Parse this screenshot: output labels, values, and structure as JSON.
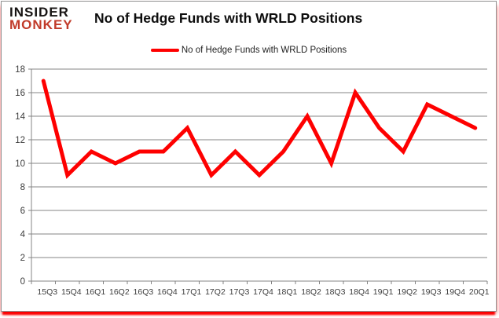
{
  "brand": {
    "line1": "INSIDER",
    "line2": "MONKEY",
    "accent_color": "#c13b2a"
  },
  "header": {
    "title": "No of Hedge Funds with WRLD Positions"
  },
  "legend": {
    "label": "No of Hedge Funds with WRLD Positions",
    "line_color": "#fe0000"
  },
  "chart_data": {
    "type": "line",
    "title": "No of Hedge Funds with WRLD Positions",
    "categories": [
      "15Q3",
      "15Q4",
      "16Q1",
      "16Q2",
      "16Q3",
      "16Q4",
      "17Q1",
      "17Q2",
      "17Q3",
      "17Q4",
      "18Q1",
      "18Q2",
      "18Q3",
      "18Q4",
      "19Q1",
      "19Q2",
      "19Q3",
      "19Q4",
      "20Q1"
    ],
    "series": [
      {
        "name": "No of Hedge Funds with WRLD Positions",
        "color": "#fe0000",
        "values": [
          17,
          9,
          11,
          10,
          11,
          11,
          13,
          9,
          11,
          9,
          11,
          14,
          10,
          16,
          13,
          11,
          15,
          14,
          13
        ]
      }
    ],
    "xlabel": "",
    "ylabel": "",
    "ylim": [
      0,
      18
    ],
    "ytick_step": 2,
    "grid": true,
    "legend_position": "top-center",
    "axis_color": "#848484",
    "tick_label_color": "#3c3c3c"
  }
}
